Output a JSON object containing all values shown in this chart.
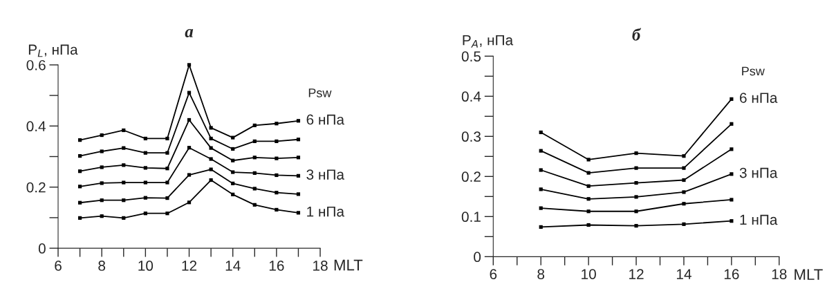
{
  "chart_data": [
    {
      "type": "line",
      "title": "а",
      "ylabel": "P$_{L}$, нПа",
      "xlabel": "MLT",
      "marker": "square",
      "line_style": "solid",
      "grid": false,
      "legend": false,
      "annotations": [
        "Psw"
      ],
      "xlim": [
        6,
        18
      ],
      "xticks": [
        6,
        {
          "value": 7,
          "label": null
        },
        8,
        {
          "value": 9,
          "label": null
        },
        10,
        {
          "value": 11,
          "label": null
        },
        12,
        {
          "value": 13,
          "label": null
        },
        14,
        {
          "value": 15,
          "label": null
        },
        16,
        {
          "value": 17,
          "label": null
        },
        18
      ],
      "ylim": [
        0,
        0.6
      ],
      "yticks": [
        0,
        {
          "value": 0.1,
          "label": null
        },
        0.2,
        {
          "value": 0.3,
          "label": null
        },
        0.4,
        {
          "value": 0.5,
          "label": null
        },
        0.6
      ],
      "x": [
        7,
        8,
        9,
        10,
        11,
        12,
        13,
        14,
        15,
        16,
        17
      ],
      "series": [
        {
          "name": "1 нПа",
          "color": "#000000",
          "values": [
            0.099,
            0.105,
            0.099,
            0.114,
            0.114,
            0.15,
            0.223,
            0.176,
            0.142,
            0.126,
            0.116
          ]
        },
        {
          "color": "#000000",
          "values": [
            0.149,
            0.157,
            0.157,
            0.165,
            0.164,
            0.24,
            0.258,
            0.212,
            0.195,
            0.182,
            0.177
          ]
        },
        {
          "name": "3 нПа",
          "color": "#000000",
          "values": [
            0.202,
            0.213,
            0.215,
            0.215,
            0.215,
            0.329,
            0.292,
            0.249,
            0.246,
            0.239,
            0.237
          ]
        },
        {
          "color": "#000000",
          "values": [
            0.252,
            0.265,
            0.272,
            0.263,
            0.261,
            0.42,
            0.328,
            0.287,
            0.297,
            0.294,
            0.297
          ]
        },
        {
          "color": "#000000",
          "values": [
            0.302,
            0.317,
            0.328,
            0.312,
            0.312,
            0.509,
            0.359,
            0.325,
            0.35,
            0.35,
            0.356
          ]
        },
        {
          "name": "6 нПа",
          "color": "#000000",
          "values": [
            0.354,
            0.37,
            0.386,
            0.359,
            0.359,
            0.6,
            0.394,
            0.362,
            0.402,
            0.408,
            0.417
          ]
        }
      ]
    },
    {
      "type": "line",
      "title": "б",
      "ylabel": "P$_{A}$, нПа",
      "xlabel": "MLT",
      "marker": "square",
      "line_style": "solid",
      "grid": false,
      "legend": false,
      "annotations": [
        "Psw"
      ],
      "xlim": [
        6,
        18
      ],
      "xticks": [
        6,
        {
          "value": 7,
          "label": null
        },
        8,
        {
          "value": 9,
          "label": null
        },
        10,
        {
          "value": 11,
          "label": null
        },
        12,
        {
          "value": 13,
          "label": null
        },
        14,
        {
          "value": 15,
          "label": null
        },
        16,
        {
          "value": 17,
          "label": null
        },
        18
      ],
      "ylim": [
        0,
        0.5
      ],
      "yticks": [
        0,
        {
          "value": 0.05,
          "label": null
        },
        0.1,
        {
          "value": 0.15,
          "label": null
        },
        0.2,
        {
          "value": 0.25,
          "label": null
        },
        0.3,
        {
          "value": 0.35,
          "label": null
        },
        0.4,
        {
          "value": 0.45,
          "label": null
        },
        0.5
      ],
      "x": [
        8,
        10,
        12,
        14,
        16
      ],
      "series": [
        {
          "name": "1 нПа",
          "color": "#000000",
          "values": [
            0.074,
            0.079,
            0.077,
            0.081,
            0.089
          ]
        },
        {
          "color": "#000000",
          "values": [
            0.121,
            0.113,
            0.113,
            0.132,
            0.142
          ]
        },
        {
          "name": "3 нПа",
          "color": "#000000",
          "values": [
            0.168,
            0.144,
            0.149,
            0.161,
            0.206
          ]
        },
        {
          "color": "#000000",
          "values": [
            0.216,
            0.176,
            0.184,
            0.191,
            0.268
          ]
        },
        {
          "color": "#000000",
          "values": [
            0.264,
            0.209,
            0.221,
            0.221,
            0.331
          ]
        },
        {
          "name": "6 нПа",
          "color": "#000000",
          "values": [
            0.31,
            0.242,
            0.258,
            0.251,
            0.393
          ]
        }
      ]
    }
  ]
}
